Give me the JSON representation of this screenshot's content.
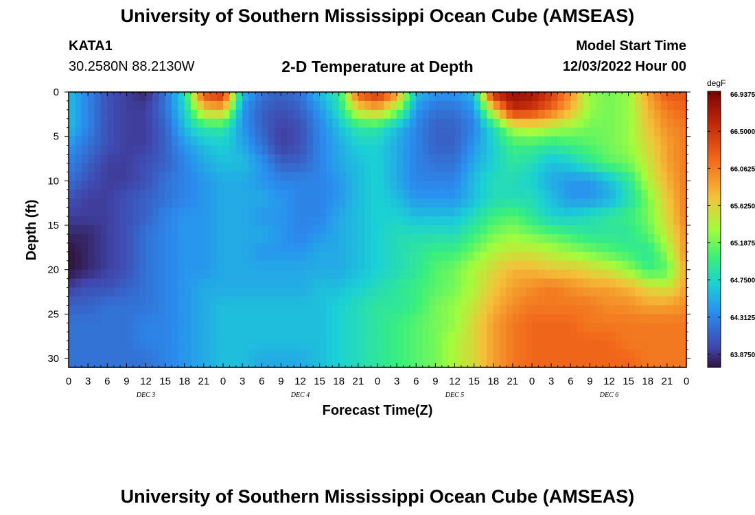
{
  "header": {
    "title": "University of Southern Mississippi Ocean Cube (AMSEAS)",
    "station": "KATA1",
    "coords": "30.2580N  88.2130W",
    "subtitle": "2-D Temperature at Depth",
    "model_start_label": "Model Start Time",
    "model_start_value": "12/03/2022 Hour 00"
  },
  "footer": {
    "title": "University of Southern Mississippi Ocean Cube (AMSEAS)"
  },
  "colors": {
    "background": "#ffffff",
    "axis": "#000000"
  },
  "chart_data": {
    "type": "heatmap",
    "xlabel": "Forecast Time(Z)",
    "ylabel": "Depth (ft)",
    "x_unit": "forecast hour",
    "xlim": [
      0,
      96
    ],
    "ylim": [
      31,
      0
    ],
    "x_tick_labels": [
      "0",
      "3",
      "6",
      "9",
      "12",
      "15",
      "18",
      "21",
      "0",
      "3",
      "6",
      "9",
      "12",
      "15",
      "18",
      "21",
      "0",
      "3",
      "6",
      "9",
      "12",
      "15",
      "18",
      "21",
      "0",
      "3",
      "6",
      "9",
      "12",
      "15",
      "18",
      "21",
      "0"
    ],
    "y_ticks": [
      0,
      5,
      10,
      15,
      20,
      25,
      30
    ],
    "day_labels": [
      "DEC 3",
      "DEC 4",
      "DEC 5",
      "DEC 6"
    ],
    "colorbar": {
      "unit": "degF",
      "ticks": [
        "66.9375",
        "66.5000",
        "66.0625",
        "65.6250",
        "65.1875",
        "64.7500",
        "64.3125",
        "63.8750"
      ],
      "min": 63.7,
      "max": 67.0
    },
    "depths": [
      0,
      2,
      4,
      6,
      8,
      10,
      12,
      14,
      16,
      18,
      20,
      22,
      24,
      26,
      28,
      30
    ],
    "hours": [
      0,
      3,
      6,
      9,
      12,
      15,
      18,
      21,
      24,
      27,
      30,
      33,
      36,
      39,
      42,
      45,
      48,
      51,
      54,
      57,
      60,
      63,
      66,
      69,
      72,
      75,
      78,
      81,
      84,
      87,
      90,
      93,
      96
    ],
    "values": [
      [
        64.6,
        64.3,
        64.0,
        63.9,
        63.8,
        64.2,
        64.8,
        66.4,
        66.6,
        64.6,
        64.2,
        64.1,
        64.2,
        64.6,
        64.9,
        66.3,
        66.6,
        66.0,
        64.6,
        64.4,
        64.4,
        64.6,
        66.7,
        66.9,
        66.8,
        66.5,
        66.0,
        65.3,
        65.2,
        65.3,
        65.9,
        66.3,
        66.3
      ],
      [
        64.6,
        64.3,
        64.0,
        63.9,
        63.9,
        64.2,
        64.7,
        65.7,
        65.8,
        64.4,
        64.1,
        64.0,
        64.1,
        64.4,
        64.8,
        65.6,
        65.8,
        65.3,
        64.4,
        64.2,
        64.2,
        64.4,
        65.6,
        66.6,
        66.5,
        66.2,
        65.8,
        65.3,
        65.2,
        65.3,
        65.8,
        66.1,
        66.2
      ],
      [
        64.6,
        64.3,
        64.0,
        63.9,
        63.9,
        64.1,
        64.6,
        64.9,
        64.9,
        64.4,
        64.1,
        63.9,
        64.0,
        64.3,
        64.6,
        64.9,
        64.9,
        64.6,
        64.3,
        64.1,
        64.1,
        64.3,
        64.8,
        65.4,
        65.5,
        65.4,
        65.3,
        65.2,
        65.2,
        65.3,
        65.7,
        66.0,
        66.1
      ],
      [
        64.4,
        64.2,
        64.0,
        63.9,
        63.9,
        64.1,
        64.4,
        64.6,
        64.7,
        64.5,
        64.2,
        63.9,
        64.0,
        64.3,
        64.5,
        64.7,
        64.7,
        64.5,
        64.3,
        64.1,
        64.1,
        64.4,
        64.7,
        65.0,
        65.0,
        64.9,
        65.0,
        65.1,
        65.2,
        65.3,
        65.6,
        65.9,
        66.1
      ],
      [
        64.3,
        64.1,
        63.9,
        63.9,
        64.0,
        64.1,
        64.3,
        64.5,
        64.6,
        64.6,
        64.4,
        64.1,
        64.1,
        64.3,
        64.5,
        64.6,
        64.7,
        64.5,
        64.3,
        64.2,
        64.2,
        64.5,
        64.7,
        64.9,
        64.8,
        64.6,
        64.7,
        64.9,
        65.1,
        65.2,
        65.5,
        65.9,
        66.1
      ],
      [
        64.2,
        64.0,
        63.9,
        63.9,
        64.0,
        64.2,
        64.3,
        64.4,
        64.5,
        64.5,
        64.4,
        64.3,
        64.3,
        64.3,
        64.4,
        64.6,
        64.7,
        64.5,
        64.3,
        64.3,
        64.3,
        64.6,
        64.8,
        64.8,
        64.7,
        64.5,
        64.4,
        64.4,
        64.6,
        64.9,
        65.4,
        65.8,
        66.1
      ],
      [
        64.0,
        63.9,
        63.9,
        64.0,
        64.1,
        64.2,
        64.3,
        64.4,
        64.5,
        64.5,
        64.5,
        64.4,
        64.3,
        64.3,
        64.4,
        64.6,
        64.7,
        64.6,
        64.4,
        64.4,
        64.4,
        64.6,
        64.8,
        64.8,
        64.8,
        64.6,
        64.4,
        64.4,
        64.5,
        64.8,
        65.2,
        65.7,
        66.1
      ],
      [
        63.9,
        63.9,
        63.9,
        64.0,
        64.1,
        64.3,
        64.4,
        64.4,
        64.5,
        64.5,
        64.4,
        64.4,
        64.3,
        64.3,
        64.5,
        64.6,
        64.7,
        64.7,
        64.6,
        64.6,
        64.6,
        64.8,
        65.0,
        65.1,
        64.9,
        64.7,
        64.7,
        64.8,
        64.9,
        65.0,
        65.2,
        65.6,
        66.1
      ],
      [
        63.8,
        63.8,
        63.9,
        64.0,
        64.2,
        64.3,
        64.4,
        64.4,
        64.5,
        64.5,
        64.5,
        64.4,
        64.3,
        64.4,
        64.5,
        64.6,
        64.7,
        64.8,
        64.8,
        64.8,
        64.8,
        65.0,
        65.2,
        65.3,
        65.2,
        65.1,
        65.0,
        64.9,
        64.9,
        64.9,
        65.1,
        65.5,
        66.0
      ],
      [
        63.7,
        63.8,
        63.9,
        64.0,
        64.2,
        64.3,
        64.4,
        64.4,
        64.5,
        64.5,
        64.4,
        64.4,
        64.4,
        64.5,
        64.5,
        64.6,
        64.7,
        64.8,
        64.9,
        65.0,
        65.0,
        65.2,
        65.4,
        65.5,
        65.5,
        65.4,
        65.3,
        65.2,
        65.1,
        65.0,
        64.9,
        65.3,
        66.0
      ],
      [
        63.7,
        63.8,
        63.9,
        64.0,
        64.2,
        64.3,
        64.4,
        64.4,
        64.5,
        64.5,
        64.5,
        64.5,
        64.5,
        64.5,
        64.5,
        64.6,
        64.7,
        64.8,
        64.9,
        65.1,
        65.2,
        65.4,
        65.6,
        65.8,
        65.8,
        65.7,
        65.7,
        65.6,
        65.5,
        65.3,
        65.0,
        65.1,
        65.9
      ],
      [
        63.9,
        64.0,
        64.0,
        64.1,
        64.2,
        64.3,
        64.4,
        64.5,
        64.5,
        64.5,
        64.5,
        64.5,
        64.5,
        64.6,
        64.6,
        64.7,
        64.8,
        64.9,
        65.0,
        65.1,
        65.2,
        65.4,
        65.7,
        65.9,
        66.0,
        66.1,
        66.0,
        65.9,
        65.9,
        65.8,
        65.6,
        65.5,
        65.9
      ],
      [
        64.1,
        64.1,
        64.2,
        64.2,
        64.2,
        64.3,
        64.4,
        64.5,
        64.6,
        64.6,
        64.6,
        64.6,
        64.6,
        64.6,
        64.7,
        64.8,
        64.9,
        64.9,
        65.0,
        65.2,
        65.3,
        65.5,
        65.8,
        66.0,
        66.1,
        66.1,
        66.1,
        66.1,
        66.0,
        66.0,
        65.9,
        65.9,
        66.0
      ],
      [
        64.2,
        64.2,
        64.2,
        64.2,
        64.3,
        64.3,
        64.4,
        64.5,
        64.6,
        64.6,
        64.6,
        64.6,
        64.6,
        64.6,
        64.7,
        64.8,
        64.9,
        65.0,
        65.1,
        65.2,
        65.3,
        65.6,
        65.9,
        66.1,
        66.2,
        66.2,
        66.2,
        66.1,
        66.1,
        66.1,
        66.1,
        66.1,
        66.1
      ],
      [
        64.2,
        64.2,
        64.2,
        64.2,
        64.3,
        64.3,
        64.4,
        64.5,
        64.6,
        64.6,
        64.6,
        64.6,
        64.6,
        64.6,
        64.7,
        64.8,
        64.9,
        65.0,
        65.1,
        65.2,
        65.4,
        65.6,
        65.9,
        66.1,
        66.2,
        66.2,
        66.2,
        66.2,
        66.2,
        66.1,
        66.1,
        66.1,
        66.1
      ],
      [
        64.2,
        64.2,
        64.2,
        64.2,
        64.2,
        64.3,
        64.4,
        64.5,
        64.6,
        64.6,
        64.5,
        64.5,
        64.5,
        64.6,
        64.7,
        64.8,
        64.9,
        65.0,
        65.1,
        65.2,
        65.4,
        65.6,
        65.9,
        66.1,
        66.2,
        66.2,
        66.2,
        66.2,
        66.2,
        66.2,
        66.1,
        66.1,
        66.1
      ]
    ]
  }
}
